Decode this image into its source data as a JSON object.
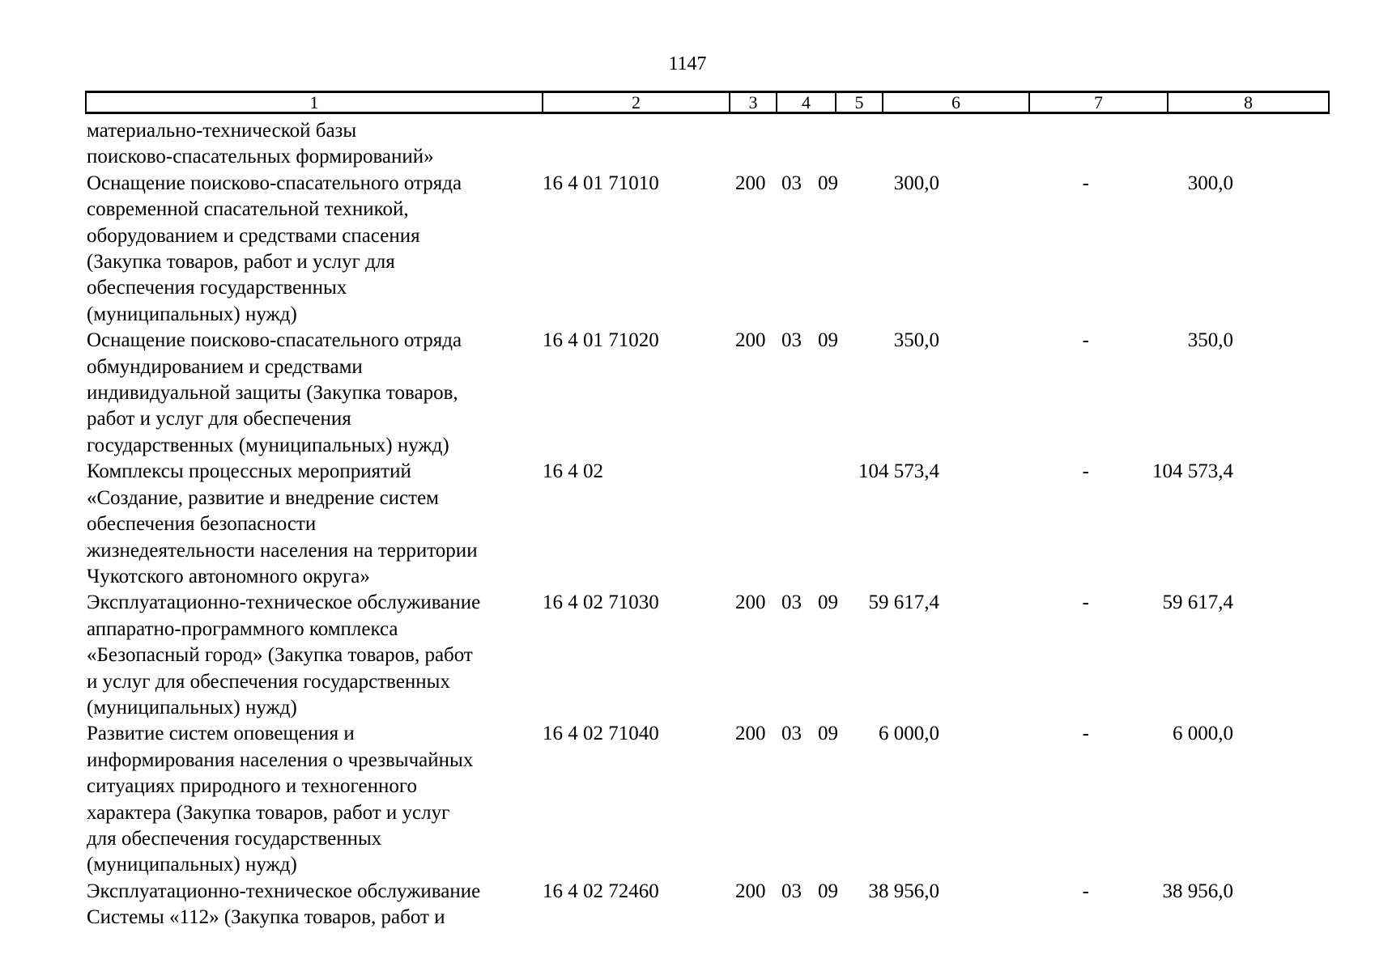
{
  "page": {
    "number": "1147"
  },
  "table": {
    "header_columns": [
      "1",
      "2",
      "3",
      "4",
      "5",
      "6",
      "7",
      "8"
    ],
    "rows": [
      {
        "name": "материально-технической базы\nпоисково-спасательных формирований»",
        "code": "",
        "vr": "",
        "rz": "",
        "pr": "",
        "c6": "",
        "c7": "",
        "c8": ""
      },
      {
        "name": "Оснащение поисково-спасательного отряда\nсовременной спасательной техникой,\nоборудованием и средствами спасения\n(Закупка товаров, работ и услуг для\nобеспечения государственных\n(муниципальных) нужд)",
        "code": "16 4 01 71010",
        "vr": "200",
        "rz": "03",
        "pr": "09",
        "c6": "300,0",
        "c7": "-",
        "c8": "300,0"
      },
      {
        "name": "Оснащение поисково-спасательного отряда\nобмундированием и средствами\nиндивидуальной защиты (Закупка товаров,\nработ и услуг для обеспечения\nгосударственных (муниципальных) нужд)",
        "code": "16 4 01 71020",
        "vr": "200",
        "rz": "03",
        "pr": "09",
        "c6": "350,0",
        "c7": "-",
        "c8": "350,0"
      },
      {
        "name": "Комплексы процессных мероприятий\n«Создание, развитие и внедрение систем\nобеспечения безопасности\nжизнедеятельности населения на территории\nЧукотского автономного округа»",
        "code": "16 4 02",
        "vr": "",
        "rz": "",
        "pr": "",
        "c6": "104 573,4",
        "c7": "-",
        "c8": "104 573,4"
      },
      {
        "name": "Эксплуатационно-техническое обслуживание\nаппаратно-программного комплекса\n«Безопасный город» (Закупка товаров, работ\nи услуг для обеспечения государственных\n(муниципальных) нужд)",
        "code": "16 4 02 71030",
        "vr": "200",
        "rz": "03",
        "pr": "09",
        "c6": "59 617,4",
        "c7": "-",
        "c8": "59 617,4"
      },
      {
        "name": "Развитие систем оповещения и\nинформирования населения о чрезвычайных\nситуациях природного и техногенного\nхарактера (Закупка товаров, работ и услуг\nдля обеспечения государственных\n(муниципальных) нужд)",
        "code": "16 4 02 71040",
        "vr": "200",
        "rz": "03",
        "pr": "09",
        "c6": "6 000,0",
        "c7": "-",
        "c8": "6 000,0"
      },
      {
        "name": "Эксплуатационно-техническое обслуживание\nСистемы «112» (Закупка товаров, работ и",
        "code": "16 4 02 72460",
        "vr": "200",
        "rz": "03",
        "pr": "09",
        "c6": "38 956,0",
        "c7": "-",
        "c8": "38 956,0"
      }
    ]
  }
}
